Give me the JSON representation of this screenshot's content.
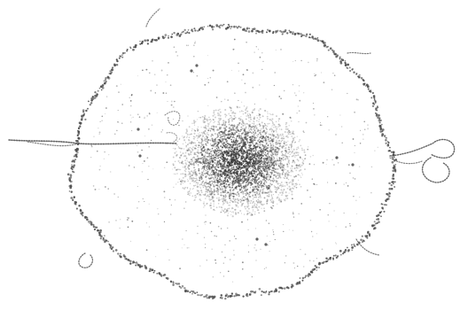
{
  "image": {
    "subject": "ink-stipple-sketch",
    "background_color": "#ffffff",
    "ink_color": "#4a4a4a",
    "nucleus_ink_color": "#3a3a3a",
    "stipple_density": "dense-center-sparse-edges"
  }
}
